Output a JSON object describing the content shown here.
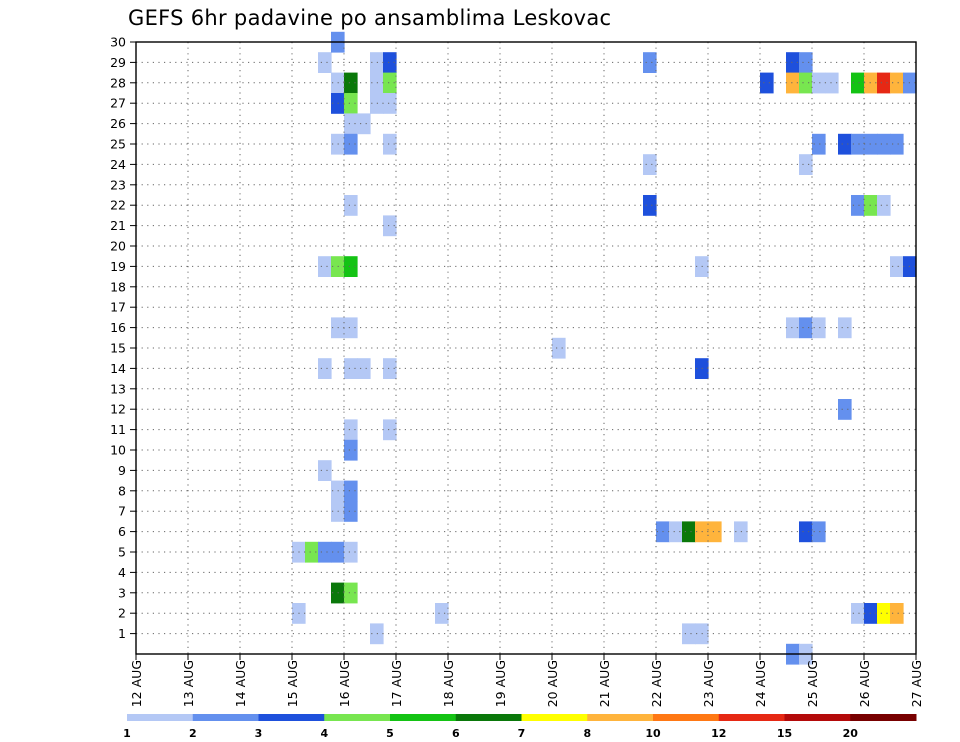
{
  "chart_data": {
    "type": "heatmap",
    "title": "GEFS 6hr padavine po ansamblima Leskovac",
    "x_ticks": [
      "12 AUG",
      "13 AUG",
      "14 AUG",
      "15 AUG",
      "16 AUG",
      "17 AUG",
      "18 AUG",
      "19 AUG",
      "20 AUG",
      "21 AUG",
      "22 AUG",
      "23 AUG",
      "24 AUG",
      "25 AUG",
      "26 AUG",
      "27 AUG"
    ],
    "y_ticks": [
      "1",
      "2",
      "3",
      "4",
      "5",
      "6",
      "7",
      "8",
      "9",
      "10",
      "11",
      "12",
      "13",
      "14",
      "15",
      "16",
      "17",
      "18",
      "19",
      "20",
      "21",
      "22",
      "23",
      "24",
      "25",
      "26",
      "27",
      "28",
      "29",
      "30"
    ],
    "x_range": [
      "12 AUG",
      "27 AUG"
    ],
    "y_range": [
      0,
      30
    ],
    "time_step_hours": 6,
    "grid": "dotted",
    "legend_placement": "bottom",
    "legend": {
      "labels": [
        "1",
        "2",
        "3",
        "4",
        "5",
        "6",
        "7",
        "8",
        "10",
        "12",
        "15",
        "20"
      ],
      "colors": [
        "#b4c8f5",
        "#6490ee",
        "#1e50dc",
        "#78e650",
        "#14c314",
        "#0a780a",
        "#ffff00",
        "#ffb43c",
        "#ff7814",
        "#e62814",
        "#b40a0a",
        "#780000"
      ]
    },
    "cells": [
      {
        "day": "15 AUG",
        "hour": 0,
        "member": 5,
        "bin": 1
      },
      {
        "day": "15 AUG",
        "hour": 6,
        "member": 5,
        "bin": 4
      },
      {
        "day": "15 AUG",
        "hour": 12,
        "member": 5,
        "bin": 2
      },
      {
        "day": "15 AUG",
        "hour": 0,
        "member": 2,
        "bin": 1
      },
      {
        "day": "15 AUG",
        "hour": 12,
        "member": 29,
        "bin": 1
      },
      {
        "day": "15 AUG",
        "hour": 12,
        "member": 14,
        "bin": 1
      },
      {
        "day": "15 AUG",
        "hour": 12,
        "member": 9,
        "bin": 1
      },
      {
        "day": "15 AUG",
        "hour": 12,
        "member": 19,
        "bin": 1
      },
      {
        "day": "15 AUG",
        "hour": 18,
        "member": 30,
        "bin": 2
      },
      {
        "day": "15 AUG",
        "hour": 18,
        "member": 28,
        "bin": 1
      },
      {
        "day": "15 AUG",
        "hour": 18,
        "member": 27,
        "bin": 3
      },
      {
        "day": "15 AUG",
        "hour": 18,
        "member": 25,
        "bin": 1
      },
      {
        "day": "15 AUG",
        "hour": 18,
        "member": 19,
        "bin": 4
      },
      {
        "day": "15 AUG",
        "hour": 18,
        "member": 16,
        "bin": 1
      },
      {
        "day": "15 AUG",
        "hour": 18,
        "member": 8,
        "bin": 1
      },
      {
        "day": "15 AUG",
        "hour": 18,
        "member": 7,
        "bin": 1
      },
      {
        "day": "15 AUG",
        "hour": 18,
        "member": 5,
        "bin": 2
      },
      {
        "day": "15 AUG",
        "hour": 18,
        "member": 3,
        "bin": 6
      },
      {
        "day": "16 AUG",
        "hour": 0,
        "member": 28,
        "bin": 6
      },
      {
        "day": "16 AUG",
        "hour": 0,
        "member": 27,
        "bin": 4
      },
      {
        "day": "16 AUG",
        "hour": 0,
        "member": 26,
        "bin": 1
      },
      {
        "day": "16 AUG",
        "hour": 0,
        "member": 25,
        "bin": 2
      },
      {
        "day": "16 AUG",
        "hour": 0,
        "member": 22,
        "bin": 1
      },
      {
        "day": "16 AUG",
        "hour": 0,
        "member": 19,
        "bin": 5
      },
      {
        "day": "16 AUG",
        "hour": 0,
        "member": 16,
        "bin": 1
      },
      {
        "day": "16 AUG",
        "hour": 0,
        "member": 14,
        "bin": 1
      },
      {
        "day": "16 AUG",
        "hour": 0,
        "member": 11,
        "bin": 1
      },
      {
        "day": "16 AUG",
        "hour": 0,
        "member": 10,
        "bin": 2
      },
      {
        "day": "16 AUG",
        "hour": 0,
        "member": 8,
        "bin": 2
      },
      {
        "day": "16 AUG",
        "hour": 0,
        "member": 7,
        "bin": 2
      },
      {
        "day": "16 AUG",
        "hour": 0,
        "member": 5,
        "bin": 1
      },
      {
        "day": "16 AUG",
        "hour": 0,
        "member": 3,
        "bin": 4
      },
      {
        "day": "16 AUG",
        "hour": 6,
        "member": 26,
        "bin": 1
      },
      {
        "day": "16 AUG",
        "hour": 6,
        "member": 14,
        "bin": 1
      },
      {
        "day": "16 AUG",
        "hour": 12,
        "member": 1,
        "bin": 1
      },
      {
        "day": "16 AUG",
        "hour": 12,
        "member": 29,
        "bin": 1
      },
      {
        "day": "16 AUG",
        "hour": 12,
        "member": 28,
        "bin": 1
      },
      {
        "day": "16 AUG",
        "hour": 12,
        "member": 27,
        "bin": 1
      },
      {
        "day": "16 AUG",
        "hour": 18,
        "member": 29,
        "bin": 3
      },
      {
        "day": "16 AUG",
        "hour": 18,
        "member": 28,
        "bin": 4
      },
      {
        "day": "16 AUG",
        "hour": 18,
        "member": 27,
        "bin": 1
      },
      {
        "day": "16 AUG",
        "hour": 18,
        "member": 25,
        "bin": 1
      },
      {
        "day": "16 AUG",
        "hour": 18,
        "member": 21,
        "bin": 1
      },
      {
        "day": "16 AUG",
        "hour": 18,
        "member": 14,
        "bin": 1
      },
      {
        "day": "16 AUG",
        "hour": 18,
        "member": 11,
        "bin": 1
      },
      {
        "day": "17 AUG",
        "hour": 18,
        "member": 2,
        "bin": 1
      },
      {
        "day": "20 AUG",
        "hour": 0,
        "member": 15,
        "bin": 1
      },
      {
        "day": "21 AUG",
        "hour": 18,
        "member": 29,
        "bin": 2
      },
      {
        "day": "21 AUG",
        "hour": 18,
        "member": 24,
        "bin": 1
      },
      {
        "day": "21 AUG",
        "hour": 18,
        "member": 22,
        "bin": 3
      },
      {
        "day": "22 AUG",
        "hour": 0,
        "member": 6,
        "bin": 2
      },
      {
        "day": "22 AUG",
        "hour": 6,
        "member": 6,
        "bin": 1
      },
      {
        "day": "22 AUG",
        "hour": 12,
        "member": 6,
        "bin": 6
      },
      {
        "day": "22 AUG",
        "hour": 12,
        "member": 1,
        "bin": 1
      },
      {
        "day": "22 AUG",
        "hour": 18,
        "member": 6,
        "bin": 8
      },
      {
        "day": "22 AUG",
        "hour": 18,
        "member": 19,
        "bin": 1
      },
      {
        "day": "22 AUG",
        "hour": 18,
        "member": 14,
        "bin": 3
      },
      {
        "day": "22 AUG",
        "hour": 18,
        "member": 1,
        "bin": 1
      },
      {
        "day": "23 AUG",
        "hour": 0,
        "member": 6,
        "bin": 8
      },
      {
        "day": "23 AUG",
        "hour": 12,
        "member": 6,
        "bin": 1
      },
      {
        "day": "24 AUG",
        "hour": 0,
        "member": 28,
        "bin": 3
      },
      {
        "day": "24 AUG",
        "hour": 12,
        "member": 29,
        "bin": 3
      },
      {
        "day": "24 AUG",
        "hour": 12,
        "member": 28,
        "bin": 8
      },
      {
        "day": "24 AUG",
        "hour": 12,
        "member": 16,
        "bin": 1
      },
      {
        "day": "24 AUG",
        "hour": 12,
        "member": 0,
        "bin": 2
      },
      {
        "day": "24 AUG",
        "hour": 18,
        "member": 29,
        "bin": 2
      },
      {
        "day": "24 AUG",
        "hour": 18,
        "member": 28,
        "bin": 4
      },
      {
        "day": "24 AUG",
        "hour": 18,
        "member": 24,
        "bin": 1
      },
      {
        "day": "24 AUG",
        "hour": 18,
        "member": 16,
        "bin": 2
      },
      {
        "day": "24 AUG",
        "hour": 18,
        "member": 6,
        "bin": 3
      },
      {
        "day": "24 AUG",
        "hour": 18,
        "member": 0,
        "bin": 1
      },
      {
        "day": "25 AUG",
        "hour": 0,
        "member": 28,
        "bin": 1
      },
      {
        "day": "25 AUG",
        "hour": 0,
        "member": 25,
        "bin": 2
      },
      {
        "day": "25 AUG",
        "hour": 0,
        "member": 16,
        "bin": 1
      },
      {
        "day": "25 AUG",
        "hour": 0,
        "member": 6,
        "bin": 2
      },
      {
        "day": "25 AUG",
        "hour": 6,
        "member": 28,
        "bin": 1
      },
      {
        "day": "25 AUG",
        "hour": 12,
        "member": 25,
        "bin": 3
      },
      {
        "day": "25 AUG",
        "hour": 12,
        "member": 16,
        "bin": 1
      },
      {
        "day": "25 AUG",
        "hour": 12,
        "member": 12,
        "bin": 2
      },
      {
        "day": "25 AUG",
        "hour": 18,
        "member": 28,
        "bin": 5
      },
      {
        "day": "25 AUG",
        "hour": 18,
        "member": 25,
        "bin": 2
      },
      {
        "day": "25 AUG",
        "hour": 18,
        "member": 22,
        "bin": 2
      },
      {
        "day": "25 AUG",
        "hour": 18,
        "member": 2,
        "bin": 1
      },
      {
        "day": "26 AUG",
        "hour": 0,
        "member": 28,
        "bin": 8
      },
      {
        "day": "26 AUG",
        "hour": 0,
        "member": 25,
        "bin": 2
      },
      {
        "day": "26 AUG",
        "hour": 0,
        "member": 22,
        "bin": 4
      },
      {
        "day": "26 AUG",
        "hour": 0,
        "member": 2,
        "bin": 3
      },
      {
        "day": "26 AUG",
        "hour": 6,
        "member": 28,
        "bin": 10
      },
      {
        "day": "26 AUG",
        "hour": 6,
        "member": 25,
        "bin": 2
      },
      {
        "day": "26 AUG",
        "hour": 6,
        "member": 22,
        "bin": 1
      },
      {
        "day": "26 AUG",
        "hour": 6,
        "member": 2,
        "bin": 7
      },
      {
        "day": "26 AUG",
        "hour": 12,
        "member": 28,
        "bin": 8
      },
      {
        "day": "26 AUG",
        "hour": 12,
        "member": 25,
        "bin": 2
      },
      {
        "day": "26 AUG",
        "hour": 12,
        "member": 19,
        "bin": 1
      },
      {
        "day": "26 AUG",
        "hour": 12,
        "member": 2,
        "bin": 8
      },
      {
        "day": "26 AUG",
        "hour": 18,
        "member": 28,
        "bin": 2
      },
      {
        "day": "26 AUG",
        "hour": 18,
        "member": 19,
        "bin": 3
      }
    ]
  }
}
